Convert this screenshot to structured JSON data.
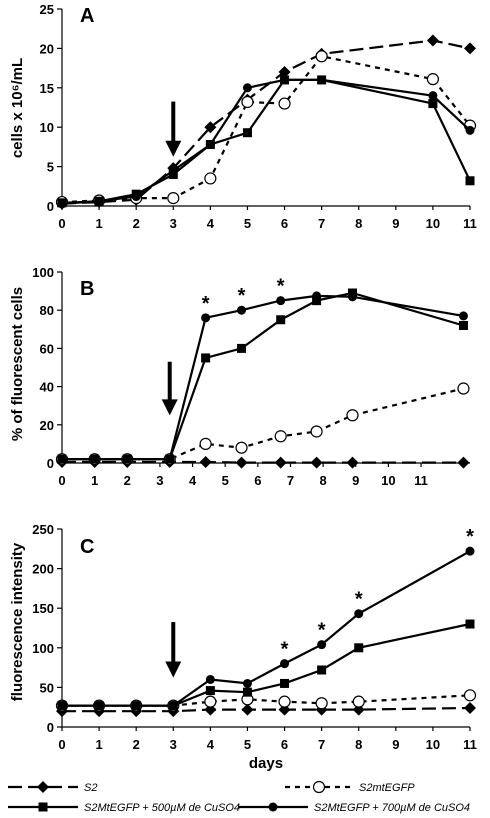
{
  "chart_data": [
    {
      "panel": "A",
      "type": "line",
      "ylabel": "cells x 10⁶/mL",
      "ylim": [
        0,
        25
      ],
      "yticks": [
        0,
        5,
        10,
        15,
        20,
        25
      ],
      "xticks": [
        0,
        1,
        2,
        3,
        4,
        5,
        6,
        7,
        8,
        9,
        10,
        11
      ],
      "xlim": [
        0,
        11
      ],
      "arrow_at_x": 3,
      "series": [
        {
          "name": "S2",
          "x": [
            0,
            1,
            2,
            3,
            4,
            5,
            6,
            7,
            10,
            11
          ],
          "y": [
            0.3,
            0.5,
            0.8,
            4.8,
            10,
            13.5,
            17,
            19.3,
            21,
            20
          ]
        },
        {
          "name": "S2mtEGFP",
          "x": [
            0,
            1,
            2,
            3,
            4,
            5,
            6,
            7,
            10,
            11
          ],
          "y": [
            0.5,
            0.7,
            1.0,
            1.0,
            3.5,
            13.2,
            13,
            19,
            16.1,
            10.2
          ]
        },
        {
          "name": "S2MtEGFP + 500µM de CuSO4",
          "x": [
            0,
            1,
            2,
            3,
            4,
            5,
            6,
            7,
            10,
            11
          ],
          "y": [
            0.4,
            0.6,
            1.5,
            4,
            7.8,
            9.3,
            16,
            16,
            13,
            3.2
          ]
        },
        {
          "name": "S2MtEGFP + 700µM de CuSO4",
          "x": [
            0,
            1,
            2,
            3,
            4,
            5,
            6,
            7,
            10,
            11
          ],
          "y": [
            0.3,
            0.6,
            1.2,
            4.5,
            7.8,
            15,
            16,
            16,
            14,
            9.6
          ]
        }
      ],
      "stars_at_x": []
    },
    {
      "panel": "B",
      "type": "line",
      "ylabel": "% of fluorescent cells",
      "ylim": [
        0,
        100
      ],
      "yticks": [
        0,
        20,
        40,
        60,
        80,
        100
      ],
      "xticks": [
        0,
        1,
        2,
        3,
        4,
        5,
        6,
        7,
        8,
        9,
        10,
        11
      ],
      "xlim": [
        0,
        12.5
      ],
      "arrow_at_x": 3.3,
      "series": [
        {
          "name": "S2",
          "x": [
            0,
            1,
            2,
            3.3,
            4.4,
            5.5,
            6.7,
            7.8,
            8.9,
            12.3
          ],
          "y": [
            0.5,
            0.5,
            0.5,
            0.5,
            0.5,
            0.2,
            0.2,
            0.2,
            0.2,
            0.2
          ]
        },
        {
          "name": "S2mtEGFP",
          "x": [
            0,
            1,
            2,
            3.3,
            4.4,
            5.5,
            6.7,
            7.8,
            8.9,
            12.3
          ],
          "y": [
            2,
            2,
            2,
            2,
            10,
            8,
            14,
            16.5,
            25,
            39
          ]
        },
        {
          "name": "S2MtEGFP + 500µM de CuSO4",
          "x": [
            0,
            1,
            2,
            3.3,
            4.4,
            5.5,
            6.7,
            7.8,
            8.9,
            12.3
          ],
          "y": [
            2,
            2,
            2,
            2,
            55,
            60,
            75,
            85,
            89,
            72
          ]
        },
        {
          "name": "S2MtEGFP + 700µM de CuSO4",
          "x": [
            0,
            1,
            2,
            3.3,
            4.4,
            5.5,
            6.7,
            7.8,
            8.9,
            12.3
          ],
          "y": [
            2,
            2,
            2,
            2,
            76,
            80,
            85,
            87.5,
            87,
            77
          ]
        }
      ],
      "stars_at_x": [
        4.4,
        5.5,
        6.7
      ]
    },
    {
      "panel": "C",
      "type": "line",
      "ylabel": "fluorescence intensity",
      "xlabel": "days",
      "ylim": [
        0,
        250
      ],
      "yticks": [
        0,
        50,
        100,
        150,
        200,
        250
      ],
      "xticks": [
        0,
        1,
        2,
        3,
        4,
        5,
        6,
        7,
        8,
        9,
        10,
        11
      ],
      "xlim": [
        0,
        11
      ],
      "arrow_at_x": 3,
      "series": [
        {
          "name": "S2",
          "x": [
            0,
            1,
            2,
            3,
            4,
            5,
            6,
            7,
            8,
            11
          ],
          "y": [
            20,
            20,
            20,
            20,
            22,
            22,
            22,
            22,
            22,
            24
          ]
        },
        {
          "name": "S2mtEGFP",
          "x": [
            0,
            1,
            2,
            3,
            4,
            5,
            6,
            7,
            8,
            11
          ],
          "y": [
            27,
            27,
            27,
            27,
            32,
            35,
            32,
            30,
            32,
            40
          ]
        },
        {
          "name": "S2MtEGFP + 500µM de CuSO4",
          "x": [
            0,
            1,
            2,
            3,
            4,
            5,
            6,
            7,
            8,
            11
          ],
          "y": [
            27,
            27,
            27,
            27,
            46,
            44,
            55,
            72,
            100,
            130
          ]
        },
        {
          "name": "S2MtEGFP + 700µM de CuSO4",
          "x": [
            0,
            1,
            2,
            3,
            4,
            5,
            6,
            7,
            8,
            11
          ],
          "y": [
            27,
            27,
            27,
            27,
            60,
            55,
            80,
            104,
            143,
            222
          ]
        }
      ],
      "stars_at_x": [
        6,
        7,
        8,
        11
      ]
    }
  ],
  "panel_letters": [
    "A",
    "B",
    "C"
  ],
  "star_symbol": "*",
  "xaxis_title": "days",
  "legend": [
    {
      "label": "S2",
      "dash": "long",
      "marker": "diamond"
    },
    {
      "label": "S2mtEGFP",
      "dash": "short",
      "marker": "open-circle"
    },
    {
      "label": "S2MtEGFP + 500µM de CuSO4",
      "dash": "solid",
      "marker": "square"
    },
    {
      "label": "S2MtEGFP + 700µM de CuSO4",
      "dash": "solid",
      "marker": "filled-circle"
    }
  ]
}
